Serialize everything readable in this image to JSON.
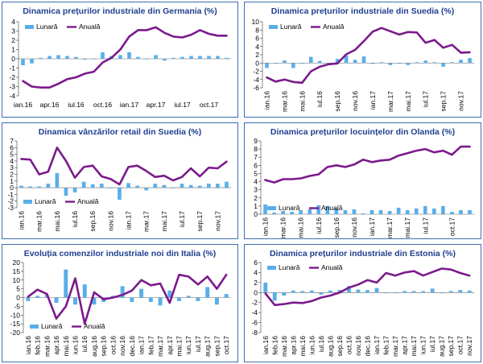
{
  "colors": {
    "monthly": "#5aaee8",
    "annual": "#7b1a8c",
    "title": "#1f3f8f",
    "border": "#3f6fae",
    "grid": "#d9d9d9"
  },
  "chart_data": [
    {
      "type": "bar+line",
      "title": "Dinamica prețurilor industriale din Germania (%)",
      "legend": [
        "Lunară",
        "Anuală"
      ],
      "legend_position": "top-left",
      "ylim": [
        -4,
        4
      ],
      "yticks": [
        -4,
        -3,
        -2,
        -1,
        0,
        1,
        2,
        3,
        4
      ],
      "xtick_labels": [
        "ian.16",
        "apr.16",
        "iul.16",
        "oct.16",
        "ian.17",
        "apr.17",
        "iul.17",
        "oct.17"
      ],
      "xtick_indices": [
        0,
        3,
        6,
        9,
        12,
        15,
        18,
        21
      ],
      "series": [
        {
          "name": "Lunară",
          "kind": "bar",
          "values": [
            -0.7,
            -0.5,
            0.1,
            0.3,
            0.4,
            0.3,
            0.2,
            -0.1,
            0.0,
            0.7,
            0.3,
            0.4,
            0.7,
            0.2,
            0.0,
            0.4,
            -0.2,
            0.1,
            0.2,
            0.3,
            0.3,
            0.3,
            0.3,
            0.1
          ]
        },
        {
          "name": "Anuală",
          "kind": "line",
          "values": [
            -2.4,
            -3.0,
            -3.1,
            -3.1,
            -2.7,
            -2.2,
            -2.0,
            -1.6,
            -1.4,
            -0.4,
            0.1,
            1.0,
            2.4,
            3.1,
            3.1,
            3.4,
            2.8,
            2.4,
            2.3,
            2.6,
            3.1,
            2.7,
            2.5,
            2.5
          ]
        }
      ]
    },
    {
      "type": "bar+line",
      "title": "Dinamica prețurilor industriale din Suedia (%)",
      "legend": [
        "Lunară",
        "Anuală"
      ],
      "legend_position": "top-left",
      "ylim": [
        -6,
        10
      ],
      "yticks": [
        -6,
        -4,
        -2,
        0,
        2,
        4,
        6,
        8,
        10
      ],
      "xtick_labels": [
        "ian.16",
        "mar.16",
        "mai.16",
        "iul.16",
        "sep.16",
        "nov.16",
        "ian.17",
        "mar.17",
        "mai.17",
        "iul.17",
        "sep.17",
        "nov.17"
      ],
      "xtick_indices": [
        0,
        2,
        4,
        6,
        8,
        10,
        12,
        14,
        16,
        18,
        20,
        22
      ],
      "series": [
        {
          "name": "Lunară",
          "kind": "bar",
          "values": [
            -1.2,
            0.0,
            0.6,
            -1.2,
            0.0,
            1.5,
            0.5,
            0.0,
            1.0,
            1.8,
            0.8,
            1.6,
            -0.2,
            0.2,
            -0.5,
            0.0,
            -0.5,
            0.2,
            0.6,
            0.2,
            -0.9,
            0.2,
            0.8,
            1.2
          ]
        },
        {
          "name": "Anuală",
          "kind": "line",
          "values": [
            -3.5,
            -4.5,
            -4.0,
            -4.6,
            -4.8,
            -2.0,
            -0.9,
            -0.3,
            -0.1,
            2.1,
            3.2,
            5.3,
            7.6,
            8.5,
            7.7,
            6.9,
            7.5,
            7.4,
            4.9,
            5.6,
            3.7,
            4.4,
            2.5,
            2.6
          ]
        }
      ]
    },
    {
      "type": "bar+line",
      "title": "Dinamica vânzărilor retail din Suedia (%)",
      "legend": [
        "Lunară",
        "Anuală"
      ],
      "legend_position": "bottom-left",
      "ylim": [
        -3,
        7
      ],
      "yticks": [
        -3,
        -2,
        -1,
        0,
        1,
        2,
        3,
        4,
        5,
        6,
        7
      ],
      "xtick_labels": [
        "ian.16",
        "mar.16",
        "mai.16",
        "iul.16",
        "sep.16",
        "nov.16",
        "ian.17",
        "mar.17",
        "mai.17",
        "iul.17",
        "sep.17",
        "nov.17"
      ],
      "xtick_indices": [
        0,
        2,
        4,
        6,
        8,
        10,
        12,
        14,
        16,
        18,
        20,
        22
      ],
      "series": [
        {
          "name": "Lunară",
          "kind": "bar",
          "values": [
            0.3,
            0.2,
            0.2,
            0.6,
            2.2,
            -1.2,
            -0.7,
            0.9,
            0.5,
            0.6,
            0.0,
            -1.8,
            0.7,
            0.3,
            -0.4,
            0.6,
            0.4,
            0.0,
            0.6,
            0.4,
            0.3,
            0.6,
            0.6,
            0.9
          ]
        },
        {
          "name": "Anuală",
          "kind": "line",
          "values": [
            4.3,
            4.2,
            2.0,
            2.4,
            6.0,
            4.0,
            1.5,
            3.1,
            3.3,
            1.7,
            1.3,
            0.5,
            3.1,
            3.3,
            2.5,
            1.6,
            1.8,
            1.1,
            1.6,
            2.9,
            1.7,
            3.0,
            2.9,
            3.9
          ]
        }
      ]
    },
    {
      "type": "bar+line",
      "title": "Dinamica prețurilor locuințelor din Olanda (%)",
      "legend": [
        "Lunară",
        "Anuală"
      ],
      "legend_position": "bottom-left",
      "ylim": [
        0,
        9
      ],
      "yticks": [
        0,
        1,
        2,
        3,
        4,
        5,
        6,
        7,
        8,
        9
      ],
      "xtick_labels": [
        "ian.16",
        "mar.16",
        "mai.16",
        "iul.16",
        "sep.16",
        "nov.16",
        "ian.17",
        "mar.17",
        "mai.17",
        "iul.17",
        "oct.17"
      ],
      "xtick_indices": [
        0,
        2,
        4,
        6,
        8,
        10,
        12,
        14,
        16,
        18,
        21
      ],
      "series": [
        {
          "name": "Lunară",
          "kind": "bar",
          "values": [
            1.2,
            0.2,
            0.4,
            0.3,
            0.5,
            0.6,
            1.1,
            1.0,
            0.7,
            0.5,
            0.6,
            0.1,
            0.5,
            0.5,
            0.4,
            0.8,
            0.5,
            0.7,
            1.0,
            0.7,
            1.0,
            0.3,
            0.5,
            0.5
          ]
        },
        {
          "name": "Anuală",
          "kind": "line",
          "values": [
            4.2,
            3.9,
            4.3,
            4.3,
            4.4,
            4.7,
            4.9,
            5.8,
            6.0,
            5.8,
            6.1,
            6.7,
            6.4,
            6.6,
            6.7,
            7.2,
            7.5,
            7.8,
            8.0,
            7.6,
            7.8,
            7.3,
            8.3,
            8.3
          ]
        }
      ]
    },
    {
      "type": "bar+line",
      "title": "Evoluția comenzilor industriale noi din Italia (%)",
      "legend": [
        "Lunară",
        "Anuală"
      ],
      "legend_position": "bottom-left",
      "ylim": [
        -20,
        20
      ],
      "yticks": [
        -20,
        -15,
        -10,
        -5,
        0,
        5,
        10,
        15,
        20
      ],
      "xtick_labels": [
        "ian.16",
        "feb.16",
        "mar.16",
        "apr.16",
        "mai.16",
        "iun.16",
        "iul.16",
        "aug.16",
        "sep.16",
        "oct.16",
        "nov.16",
        "dec.16",
        "ian.17",
        "feb.17",
        "mar.17",
        "apr.17",
        "mai.17",
        "iun.17",
        "iul.17",
        "aug.17",
        "sep.17",
        "oct.17"
      ],
      "xtick_indices": [
        0,
        1,
        2,
        3,
        4,
        5,
        6,
        7,
        8,
        9,
        10,
        11,
        12,
        13,
        14,
        15,
        16,
        17,
        18,
        19,
        20,
        21
      ],
      "series": [
        {
          "name": "Lunară",
          "kind": "bar",
          "values": [
            -2.0,
            1.0,
            1.5,
            -3.0,
            16.0,
            -4.0,
            7.5,
            -4.0,
            -2.5,
            1.0,
            6.5,
            -2.5,
            5.0,
            -2.5,
            -4.5,
            4.0,
            -2.0,
            1.0,
            -2.0,
            6.0,
            -4.0,
            2.0
          ]
        },
        {
          "name": "Anuală",
          "kind": "line",
          "values": [
            0.5,
            4.5,
            2.0,
            -12.0,
            -5.0,
            11.0,
            -15.0,
            3.0,
            -1.0,
            0.0,
            1.5,
            4.0,
            10.0,
            7.0,
            8.0,
            -3.0,
            13.0,
            12.0,
            7.5,
            12.0,
            5.0,
            13.0
          ]
        }
      ]
    },
    {
      "type": "bar+line",
      "title": "Dinamica prețurilor industriale din Estonia (%)",
      "legend": [
        "Lunară",
        "Anuală"
      ],
      "legend_position": "top-left",
      "ylim": [
        -8,
        6
      ],
      "yticks": [
        -8,
        -6,
        -4,
        -2,
        0,
        2,
        4,
        6
      ],
      "xtick_labels": [
        "ian.16",
        "feb.16",
        "mar.16",
        "apr.16",
        "mai.16",
        "iun.16",
        "iul.16",
        "aug.16",
        "sep.16",
        "oct.16",
        "nov.16",
        "dec.16",
        "ian.17",
        "feb.17",
        "mar.17",
        "apr.17",
        "mai.17",
        "iun.17",
        "iul.17",
        "aug.17",
        "sep.17",
        "oct.17",
        "nov.17"
      ],
      "xtick_indices": [
        0,
        1,
        2,
        3,
        4,
        5,
        6,
        7,
        8,
        9,
        10,
        11,
        12,
        13,
        14,
        15,
        16,
        17,
        18,
        19,
        20,
        21,
        22
      ],
      "series": [
        {
          "name": "Lunară",
          "kind": "bar",
          "values": [
            2.0,
            -1.6,
            -0.6,
            0.4,
            0.3,
            0.4,
            -0.4,
            0.4,
            0.5,
            1.3,
            0.6,
            0.5,
            0.9,
            -0.1,
            0.0,
            0.3,
            0.3,
            0.3,
            0.8,
            0.0,
            0.3,
            0.5,
            0.4
          ]
        },
        {
          "name": "Anuală",
          "kind": "line",
          "values": [
            -0.2,
            -2.5,
            -2.3,
            -2.0,
            -2.1,
            -1.7,
            -1.0,
            -0.6,
            0.0,
            1.0,
            1.6,
            2.5,
            2.0,
            3.9,
            3.4,
            4.0,
            4.3,
            3.4,
            4.1,
            4.8,
            4.6,
            3.9,
            3.4
          ]
        }
      ]
    }
  ]
}
